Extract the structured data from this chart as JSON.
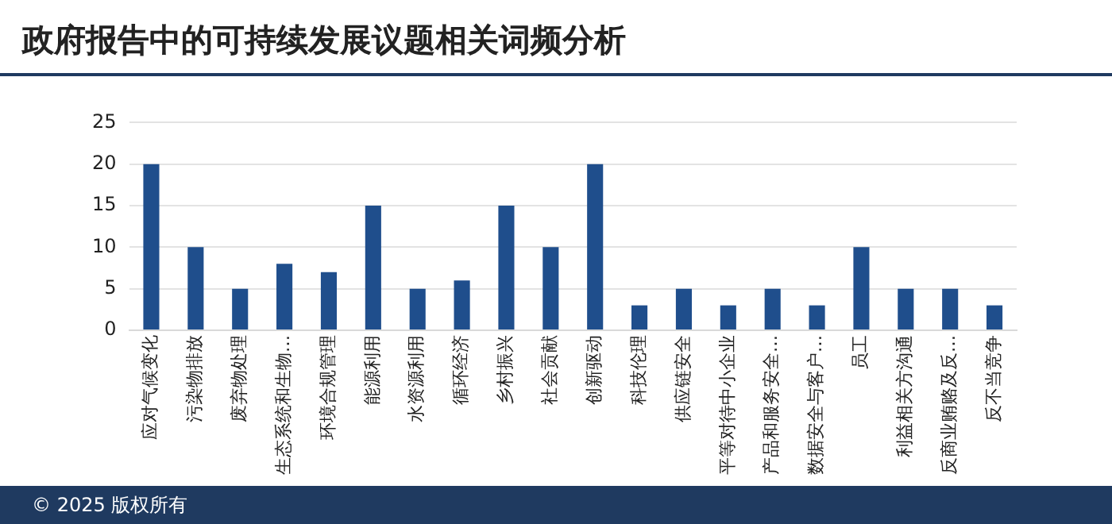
{
  "chart_data": {
    "type": "bar",
    "title": "政府报告中的可持续发展议题相关词频分析",
    "categories": [
      "应对气候变化",
      "污染物排放",
      "废弃物处理",
      "生态系统和生物…",
      "环境合规管理",
      "能源利用",
      "水资源利用",
      "循环经济",
      "乡村振兴",
      "社会贡献",
      "创新驱动",
      "科技伦理",
      "供应链安全",
      "平等对待中小企业",
      "产品和服务安全…",
      "数据安全与客户…",
      "员工",
      "利益相关方沟通",
      "反商业贿赂及反…",
      "反不当竞争"
    ],
    "values": [
      20,
      10,
      5,
      8,
      7,
      15,
      5,
      6,
      15,
      10,
      20,
      3,
      5,
      3,
      5,
      3,
      10,
      5,
      5,
      3
    ],
    "color": "#1f4e8c",
    "ylim": [
      0,
      25
    ],
    "yticks": [
      0,
      5,
      10,
      15,
      20,
      25
    ],
    "grid": "y",
    "legend": false,
    "annotations": [
      "© 2025 版权所有"
    ]
  }
}
